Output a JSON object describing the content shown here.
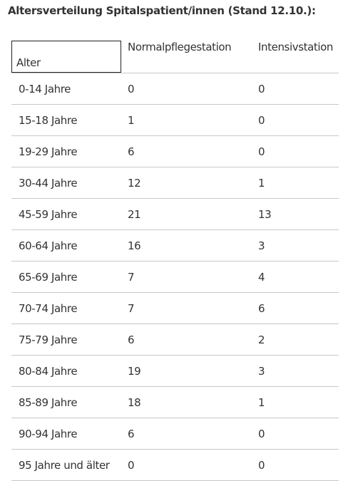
{
  "title": "Altersverteilung Spitalspatient/innen (Stand 12.10.):",
  "table": {
    "headers": [
      "Alter",
      "Normalpflegestation",
      "Intensivstation"
    ],
    "rows": [
      [
        "0-14 Jahre",
        "0",
        "0"
      ],
      [
        "15-18 Jahre",
        "1",
        "0"
      ],
      [
        "19-29 Jahre",
        "6",
        "0"
      ],
      [
        "30-44 Jahre",
        "12",
        "1"
      ],
      [
        "45-59 Jahre",
        "21",
        "13"
      ],
      [
        "60-64 Jahre",
        "16",
        "3"
      ],
      [
        "65-69 Jahre",
        "7",
        "4"
      ],
      [
        "70-74 Jahre",
        "7",
        "6"
      ],
      [
        "75-79 Jahre",
        "6",
        "2"
      ],
      [
        "80-84 Jahre",
        "19",
        "3"
      ],
      [
        "85-89 Jahre",
        "18",
        "1"
      ],
      [
        "90-94 Jahre",
        "6",
        "0"
      ],
      [
        "95 Jahre und älter",
        "0",
        "0"
      ]
    ]
  }
}
